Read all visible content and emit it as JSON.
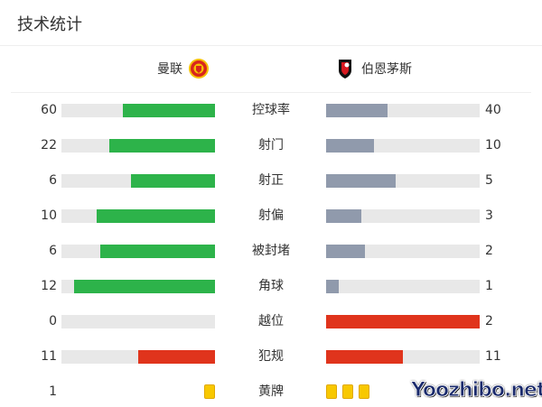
{
  "title": "技术统计",
  "home": {
    "name": "曼联",
    "crest_icon": "manchester-united-crest"
  },
  "away": {
    "name": "伯恩茅斯",
    "crest_icon": "bournemouth-crest"
  },
  "colors": {
    "leading": "#2db34a",
    "trailing": "#909aac",
    "negative": "#e0341c",
    "card": "#f8c800",
    "track": "#e8e8e8"
  },
  "stats": [
    {
      "label": "控球率",
      "home": "60",
      "away": "40",
      "home_share": 0.6,
      "away_share": 0.4,
      "type": "normal"
    },
    {
      "label": "射门",
      "home": "22",
      "away": "10",
      "home_share": 0.69,
      "away_share": 0.31,
      "type": "normal"
    },
    {
      "label": "射正",
      "home": "6",
      "away": "5",
      "home_share": 0.55,
      "away_share": 0.45,
      "type": "normal"
    },
    {
      "label": "射偏",
      "home": "10",
      "away": "3",
      "home_share": 0.77,
      "away_share": 0.23,
      "type": "normal"
    },
    {
      "label": "被封堵",
      "home": "6",
      "away": "2",
      "home_share": 0.75,
      "away_share": 0.25,
      "type": "normal"
    },
    {
      "label": "角球",
      "home": "12",
      "away": "1",
      "home_share": 0.92,
      "away_share": 0.08,
      "type": "normal"
    },
    {
      "label": "越位",
      "home": "0",
      "away": "2",
      "home_share": 0,
      "away_share": 1,
      "type": "negative"
    },
    {
      "label": "犯规",
      "home": "11",
      "away": "11",
      "home_share": 0.5,
      "away_share": 0.5,
      "type": "negative"
    }
  ],
  "yellow_cards": {
    "label": "黄牌",
    "home": "1",
    "home_count": 1,
    "away_count": 3
  },
  "watermark": "Yoozhibo.net"
}
